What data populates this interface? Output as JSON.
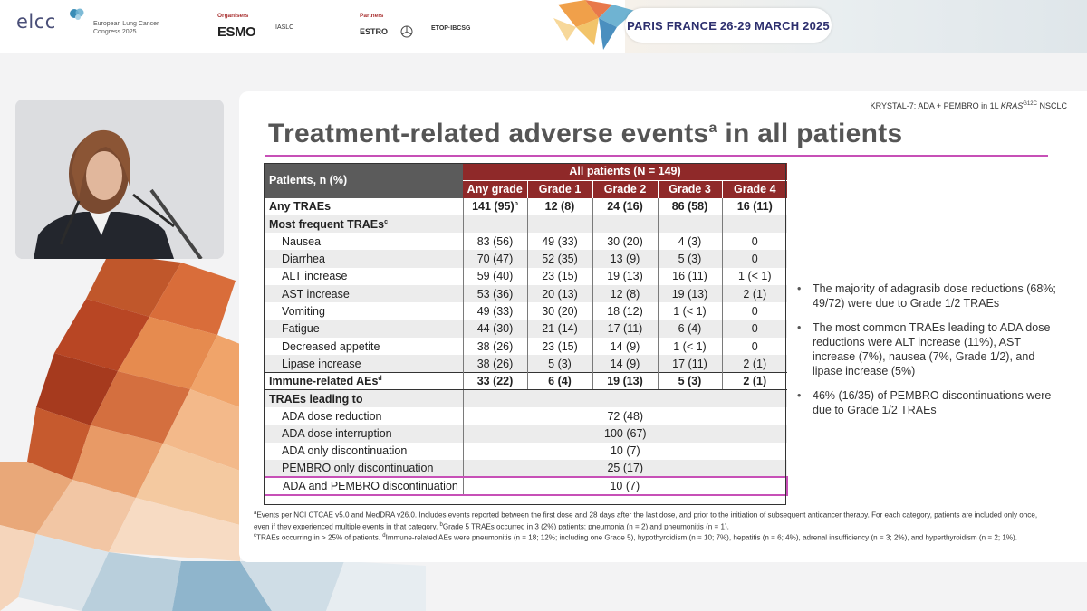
{
  "header": {
    "logo_text": "elcc",
    "logo_subtitle": "European Lung Cancer Congress 2025",
    "organisers_label": "Organisers",
    "partners_label": "Partners",
    "org_logos": [
      "ESMO",
      "IASLC"
    ],
    "partner_logos": [
      "ESTRO",
      "ETOP·IBCSG"
    ],
    "date_location": "PARIS FRANCE 26-29 MARCH 2025"
  },
  "slide": {
    "subtitle_prefix": "KRYSTAL-7: ADA + PEMBRO in 1L ",
    "subtitle_gene": "KRAS",
    "subtitle_sup": "G12C",
    "subtitle_suffix": " NSCLC",
    "title_main": "Treatment-related adverse events",
    "title_sup": "a",
    "title_tail": " in all patients"
  },
  "table": {
    "patients_header": "Patients, n (%)",
    "group_header": "All patients (N = 149)",
    "columns": [
      "Any grade",
      "Grade 1",
      "Grade 2",
      "Grade 3",
      "Grade 4"
    ],
    "any_traes": {
      "label": "Any TRAEs",
      "values": [
        "141 (95)",
        "12 (8)",
        "24 (16)",
        "86 (58)",
        "16 (11)"
      ],
      "sup": "b"
    },
    "most_frequent_label": "Most frequent TRAEs",
    "most_frequent_sup": "c",
    "frequent_rows": [
      {
        "label": "Nausea",
        "values": [
          "83 (56)",
          "49 (33)",
          "30 (20)",
          "4 (3)",
          "0"
        ]
      },
      {
        "label": "Diarrhea",
        "values": [
          "70 (47)",
          "52 (35)",
          "13 (9)",
          "5 (3)",
          "0"
        ]
      },
      {
        "label": "ALT increase",
        "values": [
          "59 (40)",
          "23 (15)",
          "19 (13)",
          "16 (11)",
          "1 (< 1)"
        ]
      },
      {
        "label": "AST increase",
        "values": [
          "53 (36)",
          "20 (13)",
          "12 (8)",
          "19 (13)",
          "2 (1)"
        ]
      },
      {
        "label": "Vomiting",
        "values": [
          "49 (33)",
          "30 (20)",
          "18 (12)",
          "1 (< 1)",
          "0"
        ]
      },
      {
        "label": "Fatigue",
        "values": [
          "44 (30)",
          "21 (14)",
          "17 (11)",
          "6 (4)",
          "0"
        ]
      },
      {
        "label": "Decreased appetite",
        "values": [
          "38 (26)",
          "23 (15)",
          "14 (9)",
          "1 (< 1)",
          "0"
        ]
      },
      {
        "label": "Lipase increase",
        "values": [
          "38 (26)",
          "5 (3)",
          "14 (9)",
          "17 (11)",
          "2 (1)"
        ]
      }
    ],
    "immune": {
      "label": "Immune-related AEs",
      "sup": "d",
      "values": [
        "33 (22)",
        "6 (4)",
        "19 (13)",
        "5 (3)",
        "2 (1)"
      ]
    },
    "leading_label": "TRAEs leading to",
    "leading_rows": [
      {
        "label": "ADA dose reduction",
        "value": "72 (48)"
      },
      {
        "label": "ADA dose interruption",
        "value": "100 (67)"
      },
      {
        "label": "ADA only discontinuation",
        "value": "10 (7)"
      },
      {
        "label": "PEMBRO only discontinuation",
        "value": "25 (17)"
      },
      {
        "label": "ADA and PEMBRO discontinuation",
        "value": "10 (7)"
      }
    ]
  },
  "bullets": [
    "The majority of adagrasib dose reductions (68%; 49/72) were due to Grade 1/2 TRAEs",
    "The most common TRAEs leading to ADA dose reductions were ALT increase (11%), AST increase (7%), nausea (7%, Grade 1/2), and lipase increase (5%)",
    "46% (16/35) of PEMBRO discontinuations were due to Grade 1/2 TRAEs"
  ],
  "footnotes": {
    "a_mark": "a",
    "a_text": "Events per NCI CTCAE v5.0 and MedDRA v26.0. Includes events reported between the first dose and 28 days after the last dose, and prior to the initiation of subsequent anticancer therapy. For each category, patients are included only once, even if they experienced multiple events in that category. ",
    "b_mark": "b",
    "b_text": "Grade 5 TRAEs occurred in 3 (2%) patients: pneumonia (n = 2) and pneumonitis (n = 1).",
    "c_mark": "c",
    "c_text": "TRAEs occurring in > 25% of patients. ",
    "d_mark": "d",
    "d_text": "Immune-related AEs were pneumonitis (n = 18; 12%; including one Grade 5), hypothyroidism (n = 10; 7%), hepatitis (n = 6; 4%), adrenal insufficiency (n = 3; 2%), and hyperthyroidism (n = 2; 1%)."
  },
  "colors": {
    "accent_magenta": "#c750b7",
    "table_header_red": "#8f2929",
    "table_header_gray": "#5b5b5b",
    "title_gray": "#555555",
    "navy": "#2d2f6e"
  }
}
